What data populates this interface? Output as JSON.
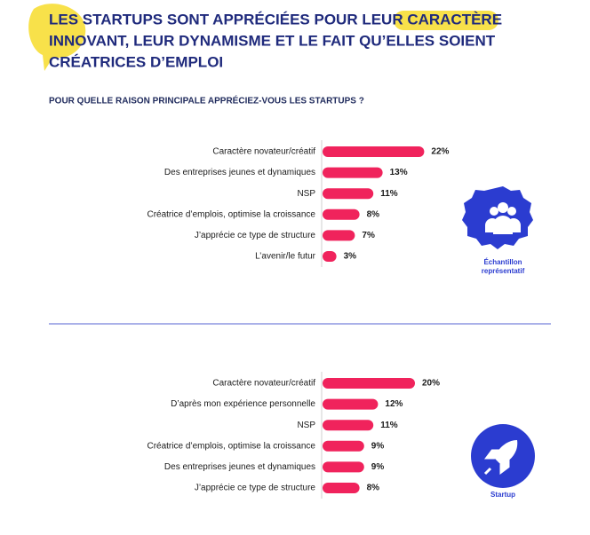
{
  "header": {
    "title_lines": [
      "LES STARTUPS SONT APPRÉCIÉES POUR LEUR CARACTÈRE",
      "INNOVANT, LEUR DYNAMISME ET LE FAIT QU’ELLES SOIENT",
      "CRÉATRICES D’EMPLOI"
    ],
    "question": "POUR QUELLE RAISON PRINCIPALE APPRÉCIEZ-VOUS LES STARTUPS ?"
  },
  "chart_data": [
    {
      "type": "bar",
      "orientation": "horizontal",
      "color": "#f0235c",
      "categories": [
        "Caractère novateur/créatif",
        "Des entreprises jeunes et dynamiques",
        "NSP",
        "Créatrice d’emplois, optimise la croissance",
        "J’apprécie ce type de structure",
        "L’avenir/le futur"
      ],
      "values": [
        22,
        13,
        11,
        8,
        7,
        3
      ],
      "value_labels": [
        "22%",
        "13%",
        "11%",
        "8%",
        "7%",
        "3%"
      ],
      "caption": [
        "Échantillon",
        "représentatif"
      ]
    },
    {
      "type": "bar",
      "orientation": "horizontal",
      "color": "#f0235c",
      "categories": [
        "Caractère novateur/créatif",
        "D’après mon expérience personnelle",
        "NSP",
        "Créatrice d’emplois, optimise la croissance",
        "Des entreprises jeunes et dynamiques",
        "J’apprécie ce type de structure"
      ],
      "values": [
        20,
        12,
        11,
        9,
        9,
        8
      ],
      "value_labels": [
        "20%",
        "12%",
        "11%",
        "9%",
        "9%",
        "8%"
      ],
      "caption": [
        "Startup"
      ]
    }
  ]
}
